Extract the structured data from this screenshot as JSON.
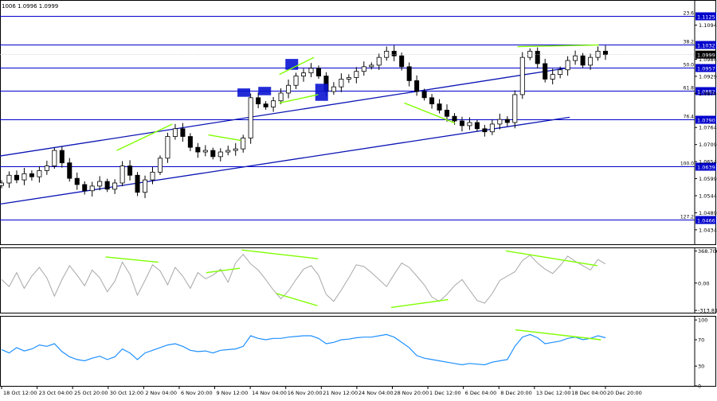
{
  "header": {
    "text": "1006 1.0996 1.0999"
  },
  "colors": {
    "candle": "#000000",
    "level": "#0000cc",
    "channel": "#0a14b4",
    "divergence": "#7fff00",
    "cci": "#a8a8a8",
    "rsi": "#1e90ff",
    "box": "#0a14d2",
    "price_marker": "#000000"
  },
  "chart_data": [
    {
      "type": "candlestick",
      "name": "main-price",
      "ylim": [
        1.039,
        1.117
      ],
      "ytick_labels": [
        "1.1094",
        "1.0984",
        "1.0929",
        "1.0874",
        "1.0764",
        "1.0709",
        "1.0654",
        "1.0599",
        "1.0544",
        "1.0489",
        "1.0434"
      ],
      "yticks": [
        1.1094,
        1.0984,
        1.0929,
        1.0874,
        1.0764,
        1.0709,
        1.0654,
        1.0599,
        1.0544,
        1.0489,
        1.0434
      ],
      "fib_levels": [
        {
          "label": "23.6",
          "value": 1.1125,
          "value_label": "1.1125"
        },
        {
          "label": "38.2",
          "value": 1.1032,
          "value_label": "1.1032"
        },
        {
          "label": "50.0",
          "value": 1.0957,
          "value_label": "1.0957"
        },
        {
          "label": "61.8",
          "value": 1.0882,
          "value_label": "1.0882"
        },
        {
          "label": "76.4",
          "value": 1.079,
          "value_label": "1.0790"
        },
        {
          "label": "100.0",
          "value": 1.0639,
          "value_label": "1.0639"
        },
        {
          "label": "127.2",
          "value": 1.0466,
          "value_label": "1.0466"
        }
      ],
      "current_price": {
        "value": 1.0999,
        "label": "1.0999"
      },
      "x_labels": [
        "18 Oct 12:00",
        "23 Oct 04:00",
        "25 Oct 20:00",
        "30 Oct 12:00",
        "2 Nov 04:00",
        "6 Nov 20:00",
        "9 Nov 12:00",
        "14 Nov 04:00",
        "16 Nov 20:00",
        "21 Nov 12:00",
        "24 Nov 04:00",
        "28 Nov 20:00",
        "1 Dec 12:00",
        "6 Dec 04:00",
        "8 Dec 20:00",
        "13 Dec 12:00",
        "18 Dec 04:00",
        "20 Dec 20:00"
      ],
      "closes": [
        1.0585,
        1.061,
        1.0595,
        1.0615,
        1.0605,
        1.0625,
        1.064,
        1.069,
        1.065,
        1.06,
        1.058,
        1.056,
        1.0575,
        1.059,
        1.0565,
        1.0585,
        1.064,
        1.061,
        1.0555,
        1.0595,
        1.062,
        1.0665,
        1.0735,
        1.076,
        1.0735,
        1.07,
        1.0685,
        1.069,
        1.067,
        1.0685,
        1.069,
        1.0695,
        1.073,
        1.086,
        1.084,
        1.083,
        1.085,
        1.0875,
        1.09,
        1.093,
        1.094,
        1.0955,
        1.093,
        1.088,
        1.0895,
        1.092,
        1.0925,
        1.0945,
        1.096,
        1.0965,
        1.099,
        1.101,
        1.0995,
        1.096,
        1.0915,
        1.088,
        1.086,
        1.084,
        1.082,
        1.08,
        1.0785,
        1.077,
        1.078,
        1.076,
        1.075,
        1.0775,
        1.079,
        1.078,
        1.087,
        1.099,
        1.101,
        1.097,
        1.092,
        1.0935,
        1.095,
        1.098,
        1.0995,
        1.0965,
        1.099,
        1.101,
        1.0999
      ],
      "channel_lines": [
        {
          "x": [
            0,
            0.82
          ],
          "y": [
            1.0672,
            1.0957
          ]
        },
        {
          "x": [
            0,
            0.82
          ],
          "y": [
            1.0517,
            1.0797
          ]
        }
      ],
      "blue_boxes": [
        {
          "x": 0.351,
          "y_top": 1.089,
          "y_bottom": 1.0863
        },
        {
          "x": 0.381,
          "y_top": 1.0895,
          "y_bottom": 1.0868
        },
        {
          "x": 0.42,
          "y_top": 1.0985,
          "y_bottom": 1.095
        },
        {
          "x": 0.463,
          "y_top": 1.0905,
          "y_bottom": 1.085
        }
      ],
      "divergence_lines": [
        {
          "x": [
            0.168,
            0.248
          ],
          "y": [
            1.069,
            1.0775
          ]
        },
        {
          "x": [
            0.3,
            0.347
          ],
          "y": [
            1.074,
            1.0722
          ]
        },
        {
          "x": [
            0.402,
            0.452
          ],
          "y": [
            1.0935,
            1.099
          ]
        },
        {
          "x": [
            0.402,
            0.458
          ],
          "y": [
            1.0843,
            1.087
          ]
        },
        {
          "x": [
            0.582,
            0.655
          ],
          "y": [
            1.0843,
            1.0778
          ]
        },
        {
          "x": [
            0.745,
            0.862
          ],
          "y": [
            1.1025,
            1.103
          ]
        }
      ]
    },
    {
      "type": "line",
      "name": "cci-oscillator",
      "ylim": [
        -340,
        400
      ],
      "ytick_labels": [
        "368.706",
        "0.00",
        "-313.816"
      ],
      "yticks": [
        368.706,
        0,
        -313.816
      ],
      "series": [
        {
          "values": [
            40,
            -40,
            120,
            -60,
            80,
            180,
            60,
            -150,
            40,
            200,
            90,
            -30,
            150,
            60,
            -100,
            20,
            240,
            100,
            -140,
            30,
            210,
            140,
            -20,
            180,
            80,
            -60,
            120,
            50,
            90,
            160,
            10,
            230,
            330,
            220,
            150,
            40,
            -80,
            -180,
            -90,
            40,
            160,
            200,
            90,
            -130,
            -210,
            -80,
            60,
            210,
            190,
            120,
            40,
            -40,
            100,
            230,
            180,
            80,
            -20,
            -160,
            -210,
            -130,
            -30,
            40,
            -80,
            -200,
            -230,
            -120,
            30,
            80,
            130,
            260,
            320,
            230,
            160,
            110,
            200,
            310,
            250,
            200,
            150,
            270,
            220
          ]
        }
      ],
      "divergence_lines": [
        {
          "x": [
            0.152,
            0.228
          ],
          "y": [
            300,
            240
          ]
        },
        {
          "x": [
            0.297,
            0.345
          ],
          "y": [
            120,
            170
          ]
        },
        {
          "x": [
            0.348,
            0.458
          ],
          "y": [
            380,
            280
          ]
        },
        {
          "x": [
            0.398,
            0.457
          ],
          "y": [
            -120,
            -260
          ]
        },
        {
          "x": [
            0.563,
            0.645
          ],
          "y": [
            -280,
            -190
          ]
        },
        {
          "x": [
            0.728,
            0.86
          ],
          "y": [
            370,
            200
          ]
        }
      ]
    },
    {
      "type": "line",
      "name": "rsi-oscillator",
      "ylim": [
        0,
        105
      ],
      "ytick_labels": [
        "100",
        "70",
        "30",
        "0"
      ],
      "yticks": [
        100,
        70,
        30,
        0
      ],
      "series": [
        {
          "values": [
            55,
            50,
            58,
            53,
            56,
            62,
            60,
            64,
            52,
            44,
            40,
            38,
            42,
            45,
            40,
            44,
            56,
            50,
            40,
            50,
            54,
            58,
            62,
            64,
            60,
            54,
            52,
            53,
            50,
            54,
            55,
            56,
            60,
            76,
            72,
            70,
            72,
            72,
            74,
            75,
            76,
            76,
            72,
            64,
            66,
            70,
            71,
            73,
            74,
            74,
            76,
            78,
            74,
            66,
            58,
            46,
            42,
            40,
            38,
            36,
            34,
            32,
            34,
            33,
            32,
            36,
            38,
            40,
            60,
            74,
            78,
            73,
            64,
            66,
            68,
            72,
            74,
            70,
            72,
            76,
            73
          ]
        }
      ],
      "divergence_lines": [
        {
          "x": [
            0.742,
            0.865
          ],
          "y": [
            85,
            70
          ]
        }
      ]
    }
  ]
}
